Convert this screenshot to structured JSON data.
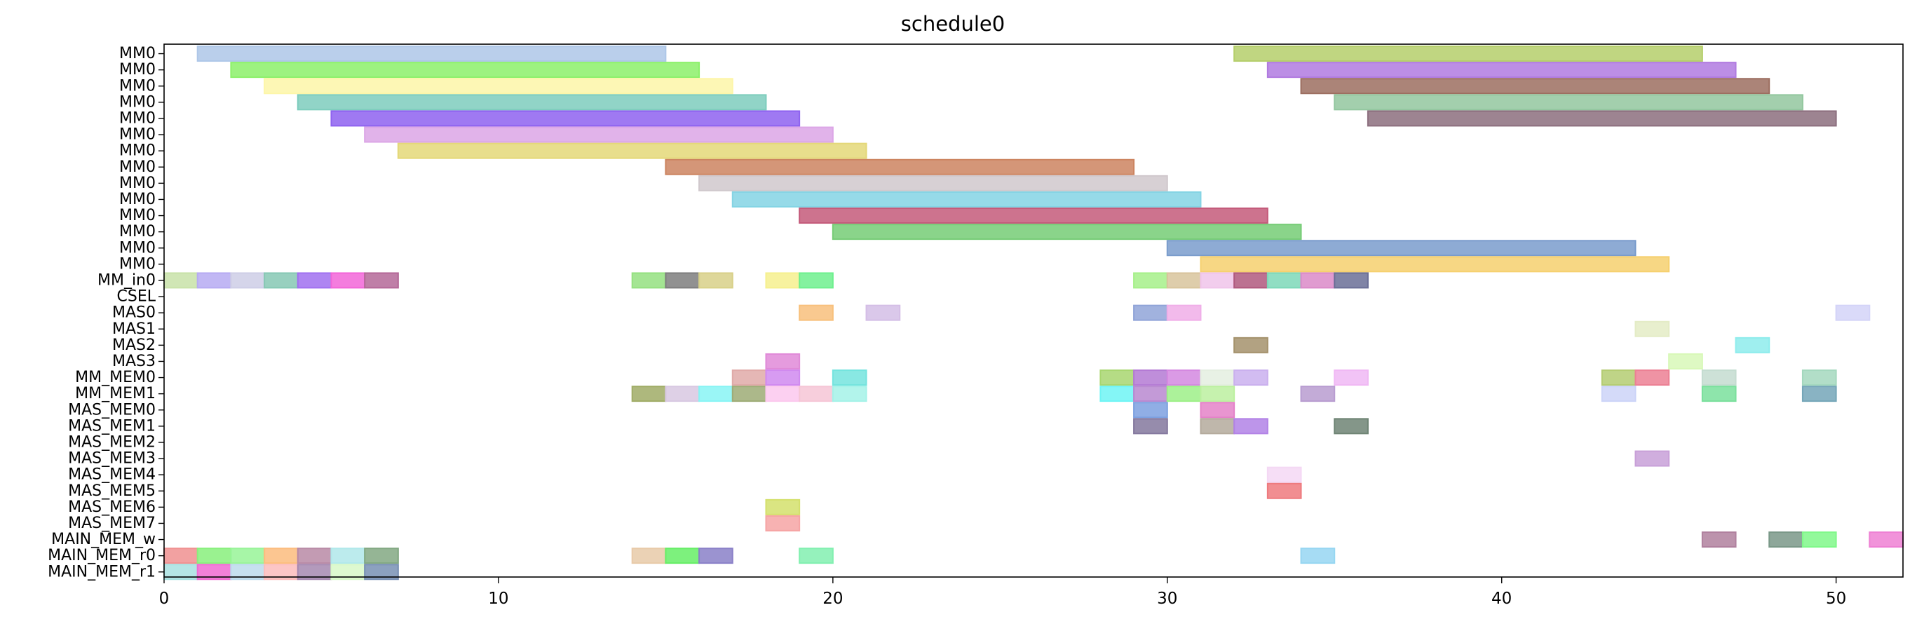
{
  "chart_data": {
    "type": "gantt",
    "title": "schedule0",
    "xlim": [
      0,
      52
    ],
    "xticks": [
      0,
      10,
      20,
      30,
      40,
      50
    ],
    "rows": [
      "MM0",
      "MM0",
      "MM0",
      "MM0",
      "MM0",
      "MM0",
      "MM0",
      "MM0",
      "MM0",
      "MM0",
      "MM0",
      "MM0",
      "MM0",
      "MM0",
      "MM_in0",
      "CSEL",
      "MAS0",
      "MAS1",
      "MAS2",
      "MAS3",
      "MM_MEM0",
      "MM_MEM1",
      "MAS_MEM0",
      "MAS_MEM1",
      "MAS_MEM2",
      "MAS_MEM3",
      "MAS_MEM4",
      "MAS_MEM5",
      "MAS_MEM6",
      "MAS_MEM7",
      "MAIN_MEM_w",
      "MAIN_MEM_r0",
      "MAIN_MEM_r1"
    ],
    "tasks": [
      {
        "row": 0,
        "start": 1,
        "end": 15,
        "color": "#aec7e8"
      },
      {
        "row": 0,
        "start": 32,
        "end": 46,
        "color": "#b5cf6b"
      },
      {
        "row": 1,
        "start": 2,
        "end": 16,
        "color": "#8cf06a"
      },
      {
        "row": 1,
        "start": 33,
        "end": 47,
        "color": "#b07ae0"
      },
      {
        "row": 2,
        "start": 3,
        "end": 17,
        "color": "#fdf6a8"
      },
      {
        "row": 2,
        "start": 34,
        "end": 48,
        "color": "#9c6e60"
      },
      {
        "row": 3,
        "start": 4,
        "end": 18,
        "color": "#7ecdbd"
      },
      {
        "row": 3,
        "start": 35,
        "end": 49,
        "color": "#93c79f"
      },
      {
        "row": 4,
        "start": 5,
        "end": 19,
        "color": "#8e62f0"
      },
      {
        "row": 4,
        "start": 36,
        "end": 50,
        "color": "#8c6e7e"
      },
      {
        "row": 5,
        "start": 6,
        "end": 20,
        "color": "#dca6e6"
      },
      {
        "row": 6,
        "start": 7,
        "end": 21,
        "color": "#e4d878"
      },
      {
        "row": 7,
        "start": 15,
        "end": 29,
        "color": "#cc8460"
      },
      {
        "row": 8,
        "start": 16,
        "end": 30,
        "color": "#d0c8cc"
      },
      {
        "row": 9,
        "start": 17,
        "end": 31,
        "color": "#84d4e4"
      },
      {
        "row": 10,
        "start": 19,
        "end": 33,
        "color": "#c45a7a"
      },
      {
        "row": 11,
        "start": 20,
        "end": 34,
        "color": "#76cc76"
      },
      {
        "row": 12,
        "start": 30,
        "end": 44,
        "color": "#7a9ccc"
      },
      {
        "row": 13,
        "start": 31,
        "end": 45,
        "color": "#f6d06e"
      },
      {
        "row": 14,
        "start": 0,
        "end": 1,
        "color": "#c8e2a8"
      },
      {
        "row": 14,
        "start": 1,
        "end": 2,
        "color": "#b6aaf2"
      },
      {
        "row": 14,
        "start": 2,
        "end": 3,
        "color": "#cecee6"
      },
      {
        "row": 14,
        "start": 3,
        "end": 4,
        "color": "#86c8b4"
      },
      {
        "row": 14,
        "start": 4,
        "end": 5,
        "color": "#a070f0"
      },
      {
        "row": 14,
        "start": 5,
        "end": 6,
        "color": "#f266d8"
      },
      {
        "row": 14,
        "start": 6,
        "end": 7,
        "color": "#b46898"
      },
      {
        "row": 14,
        "start": 14,
        "end": 15,
        "color": "#94e080"
      },
      {
        "row": 14,
        "start": 15,
        "end": 16,
        "color": "#7e7e7e"
      },
      {
        "row": 14,
        "start": 16,
        "end": 17,
        "color": "#d8d088"
      },
      {
        "row": 14,
        "start": 18,
        "end": 19,
        "color": "#f6f08e"
      },
      {
        "row": 14,
        "start": 19,
        "end": 20,
        "color": "#6ef08e"
      },
      {
        "row": 14,
        "start": 29,
        "end": 30,
        "color": "#a6f08a"
      },
      {
        "row": 14,
        "start": 30,
        "end": 31,
        "color": "#d8c49c"
      },
      {
        "row": 14,
        "start": 31,
        "end": 32,
        "color": "#f0c4ea"
      },
      {
        "row": 14,
        "start": 32,
        "end": 33,
        "color": "#b0587e"
      },
      {
        "row": 14,
        "start": 33,
        "end": 34,
        "color": "#7cd8b8"
      },
      {
        "row": 14,
        "start": 34,
        "end": 35,
        "color": "#da8ac8"
      },
      {
        "row": 14,
        "start": 35,
        "end": 36,
        "color": "#6a6e96"
      },
      {
        "row": 16,
        "start": 19,
        "end": 20,
        "color": "#f8c07c"
      },
      {
        "row": 16,
        "start": 21,
        "end": 22,
        "color": "#d4bee6"
      },
      {
        "row": 16,
        "start": 29,
        "end": 30,
        "color": "#90a4d8"
      },
      {
        "row": 16,
        "start": 30,
        "end": 31,
        "color": "#f0aee8"
      },
      {
        "row": 16,
        "start": 50,
        "end": 51,
        "color": "#d4d4f8"
      },
      {
        "row": 17,
        "start": 44,
        "end": 45,
        "color": "#e4ecc6"
      },
      {
        "row": 18,
        "start": 32,
        "end": 33,
        "color": "#a4926c"
      },
      {
        "row": 18,
        "start": 47,
        "end": 48,
        "color": "#8eecec"
      },
      {
        "row": 19,
        "start": 18,
        "end": 19,
        "color": "#e08ad8"
      },
      {
        "row": 19,
        "start": 45,
        "end": 46,
        "color": "#d8f8b8"
      },
      {
        "row": 20,
        "start": 17,
        "end": 18,
        "color": "#e0aaa8"
      },
      {
        "row": 20,
        "start": 18,
        "end": 19,
        "color": "#d08af0"
      },
      {
        "row": 20,
        "start": 20,
        "end": 21,
        "color": "#74e4de"
      },
      {
        "row": 20,
        "start": 28,
        "end": 29,
        "color": "#a8d670"
      },
      {
        "row": 20,
        "start": 29,
        "end": 30,
        "color": "#b47ad4"
      },
      {
        "row": 20,
        "start": 30,
        "end": 31,
        "color": "#d488e0"
      },
      {
        "row": 20,
        "start": 31,
        "end": 32,
        "color": "#e4eee0"
      },
      {
        "row": 20,
        "start": 32,
        "end": 33,
        "color": "#cab0ee"
      },
      {
        "row": 20,
        "start": 35,
        "end": 36,
        "color": "#f0b8f4"
      },
      {
        "row": 20,
        "start": 43,
        "end": 44,
        "color": "#b4cc72"
      },
      {
        "row": 20,
        "start": 44,
        "end": 45,
        "color": "#ec8094"
      },
      {
        "row": 20,
        "start": 46,
        "end": 47,
        "color": "#c4dcd0"
      },
      {
        "row": 20,
        "start": 49,
        "end": 50,
        "color": "#a4d8be"
      },
      {
        "row": 21,
        "start": 14,
        "end": 15,
        "color": "#a0ac66"
      },
      {
        "row": 21,
        "start": 15,
        "end": 16,
        "color": "#d8c8e2"
      },
      {
        "row": 21,
        "start": 16,
        "end": 17,
        "color": "#88f4f4"
      },
      {
        "row": 21,
        "start": 17,
        "end": 18,
        "color": "#9eac76"
      },
      {
        "row": 21,
        "start": 18,
        "end": 19,
        "color": "#fcc8ee"
      },
      {
        "row": 21,
        "start": 19,
        "end": 20,
        "color": "#f6c6d6"
      },
      {
        "row": 21,
        "start": 20,
        "end": 21,
        "color": "#a4f2e8"
      },
      {
        "row": 21,
        "start": 28,
        "end": 29,
        "color": "#6ef4f4"
      },
      {
        "row": 21,
        "start": 29,
        "end": 30,
        "color": "#b888d0"
      },
      {
        "row": 21,
        "start": 30,
        "end": 31,
        "color": "#9ef088"
      },
      {
        "row": 21,
        "start": 31,
        "end": 32,
        "color": "#bcf0a0"
      },
      {
        "row": 21,
        "start": 34,
        "end": 35,
        "color": "#b89cd0"
      },
      {
        "row": 21,
        "start": 43,
        "end": 44,
        "color": "#ccd4f8"
      },
      {
        "row": 21,
        "start": 46,
        "end": 47,
        "color": "#7ae09c"
      },
      {
        "row": 21,
        "start": 49,
        "end": 50,
        "color": "#74a6b8"
      },
      {
        "row": 22,
        "start": 29,
        "end": 30,
        "color": "#7ca0e0"
      },
      {
        "row": 22,
        "start": 31,
        "end": 32,
        "color": "#e482c8"
      },
      {
        "row": 23,
        "start": 29,
        "end": 30,
        "color": "#84789e"
      },
      {
        "row": 23,
        "start": 31,
        "end": 32,
        "color": "#b4aa9c"
      },
      {
        "row": 23,
        "start": 32,
        "end": 33,
        "color": "#b282e6"
      },
      {
        "row": 23,
        "start": 35,
        "end": 36,
        "color": "#6e8474"
      },
      {
        "row": 25,
        "start": 44,
        "end": 45,
        "color": "#c8a0d8"
      },
      {
        "row": 26,
        "start": 33,
        "end": 34,
        "color": "#f4d8f4"
      },
      {
        "row": 27,
        "start": 33,
        "end": 34,
        "color": "#ee7a7e"
      },
      {
        "row": 28,
        "start": 18,
        "end": 19,
        "color": "#d4e06c"
      },
      {
        "row": 29,
        "start": 18,
        "end": 19,
        "color": "#f6a4a4"
      },
      {
        "row": 30,
        "start": 46,
        "end": 47,
        "color": "#b0809e"
      },
      {
        "row": 30,
        "start": 48,
        "end": 49,
        "color": "#7a9888"
      },
      {
        "row": 30,
        "start": 49,
        "end": 50,
        "color": "#80f88a"
      },
      {
        "row": 30,
        "start": 51,
        "end": 52,
        "color": "#ee80d4"
      },
      {
        "row": 31,
        "start": 0,
        "end": 1,
        "color": "#f09090"
      },
      {
        "row": 31,
        "start": 1,
        "end": 2,
        "color": "#88f07c"
      },
      {
        "row": 31,
        "start": 2,
        "end": 3,
        "color": "#98f498"
      },
      {
        "row": 31,
        "start": 3,
        "end": 4,
        "color": "#fcbc7e"
      },
      {
        "row": 31,
        "start": 4,
        "end": 5,
        "color": "#b88aa6"
      },
      {
        "row": 31,
        "start": 5,
        "end": 6,
        "color": "#b0e8ea"
      },
      {
        "row": 31,
        "start": 6,
        "end": 7,
        "color": "#82a882"
      },
      {
        "row": 31,
        "start": 14,
        "end": 15,
        "color": "#e8caa8"
      },
      {
        "row": 31,
        "start": 15,
        "end": 16,
        "color": "#66ee66"
      },
      {
        "row": 31,
        "start": 16,
        "end": 17,
        "color": "#8a80c8"
      },
      {
        "row": 31,
        "start": 19,
        "end": 20,
        "color": "#82f0b0"
      },
      {
        "row": 31,
        "start": 34,
        "end": 35,
        "color": "#96d6f2"
      },
      {
        "row": 32,
        "start": 0,
        "end": 1,
        "color": "#a8e0e0"
      },
      {
        "row": 32,
        "start": 1,
        "end": 2,
        "color": "#f06ad2"
      },
      {
        "row": 32,
        "start": 2,
        "end": 3,
        "color": "#bcdaec"
      },
      {
        "row": 32,
        "start": 3,
        "end": 4,
        "color": "#fcbcbc"
      },
      {
        "row": 32,
        "start": 4,
        "end": 5,
        "color": "#a688b0"
      },
      {
        "row": 32,
        "start": 5,
        "end": 6,
        "color": "#d8f8c8"
      },
      {
        "row": 32,
        "start": 6,
        "end": 7,
        "color": "#7890b4"
      }
    ]
  }
}
